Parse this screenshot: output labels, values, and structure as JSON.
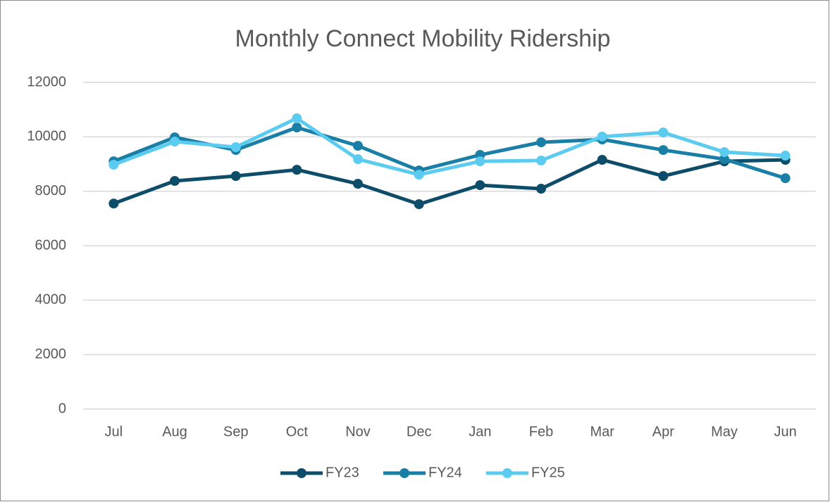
{
  "chart_data": {
    "type": "line",
    "title": "Monthly Connect Mobility Ridership",
    "categories": [
      "Jul",
      "Aug",
      "Sep",
      "Oct",
      "Nov",
      "Dec",
      "Jan",
      "Feb",
      "Mar",
      "Apr",
      "May",
      "Jun"
    ],
    "series": [
      {
        "name": "FY23",
        "color": "#0e4d6a",
        "values": [
          7550,
          8380,
          8560,
          8790,
          8275,
          7525,
          8225,
          8095,
          9155,
          8560,
          9100,
          9155
        ]
      },
      {
        "name": "FY24",
        "color": "#1a7fa6",
        "values": [
          9100,
          9980,
          9515,
          10345,
          9670,
          8765,
          9335,
          9800,
          9905,
          9515,
          9180,
          8480
        ]
      },
      {
        "name": "FY25",
        "color": "#5ccbf0",
        "values": [
          8975,
          9825,
          9620,
          10680,
          9180,
          8610,
          9100,
          9130,
          10010,
          10160,
          9440,
          9310
        ]
      }
    ],
    "ylim": [
      0,
      12000
    ],
    "yticks": [
      0,
      2000,
      4000,
      6000,
      8000,
      10000,
      12000
    ],
    "grid": true,
    "legend": "bottom"
  }
}
